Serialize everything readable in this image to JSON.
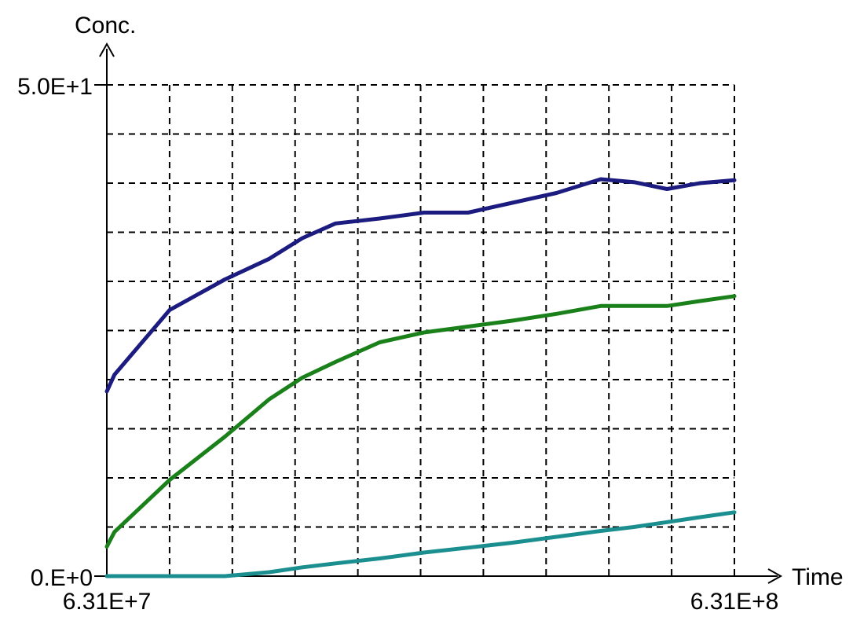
{
  "chart_data": {
    "type": "line",
    "title": "",
    "ylabel": "Conc.",
    "xlabel": "Time",
    "xlim": [
      63100000.0,
      631000000.0
    ],
    "ylim": [
      0,
      50
    ],
    "y_tick_labels": {
      "min": "0.E+0",
      "max": "5.0E+1"
    },
    "x_tick_labels": {
      "min": "6.31E+7",
      "max": "6.31E+8"
    },
    "grid": true,
    "grid_divisions": {
      "x": 10,
      "y": 10
    },
    "x": [
      63100000.0,
      70000000.0,
      120000000.0,
      170000000.0,
      210000000.0,
      240000000.0,
      270000000.0,
      310000000.0,
      350000000.0,
      390000000.0,
      430000000.0,
      470000000.0,
      510000000.0,
      540000000.0,
      570000000.0,
      600000000.0,
      631000000.0
    ],
    "series": [
      {
        "color": "#1c1c80",
        "values": [
          18.8,
          20.5,
          27.1,
          30.2,
          32.3,
          34.4,
          35.9,
          36.4,
          37.0,
          37.0,
          38.0,
          39.0,
          40.4,
          40.1,
          39.4,
          40.0,
          40.3
        ]
      },
      {
        "color": "#1a801a",
        "values": [
          3.0,
          4.5,
          9.8,
          14.2,
          18.0,
          20.2,
          21.8,
          23.8,
          24.8,
          25.4,
          26.0,
          26.7,
          27.5,
          27.5,
          27.5,
          28.0,
          28.5
        ]
      },
      {
        "color": "#1b8f8f",
        "values": [
          0.0,
          0.0,
          0.0,
          0.0,
          0.4,
          0.9,
          1.3,
          1.8,
          2.4,
          2.9,
          3.4,
          4.0,
          4.6,
          5.0,
          5.5,
          6.0,
          6.5
        ]
      }
    ]
  }
}
